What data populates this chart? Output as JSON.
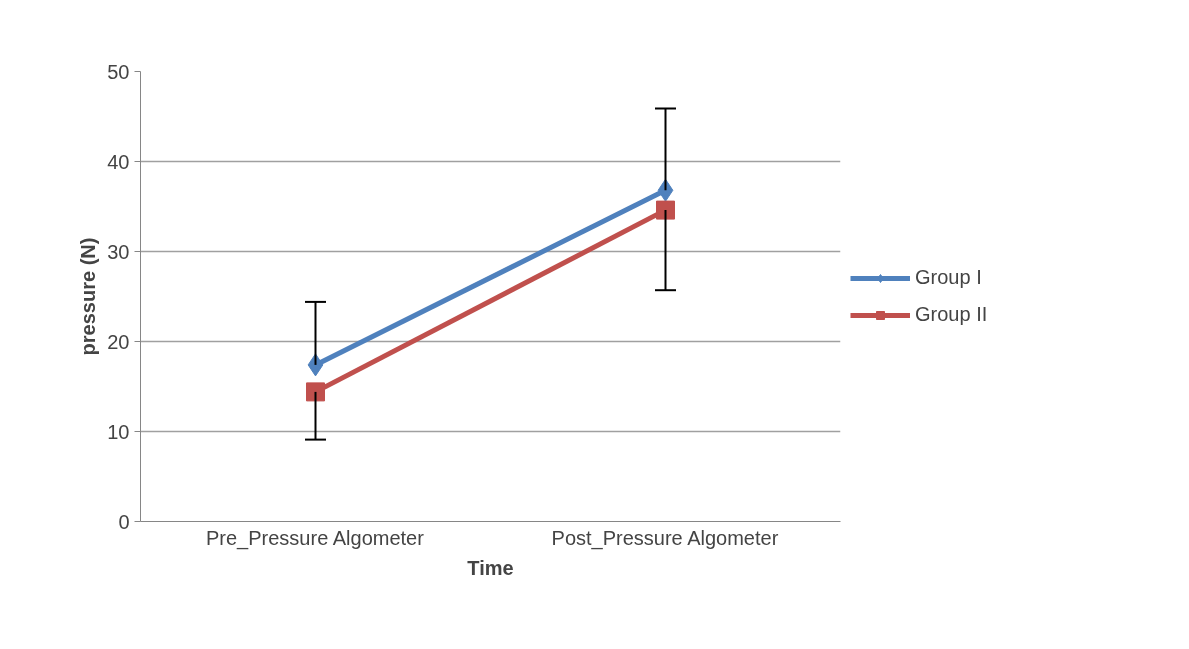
{
  "chart_data": {
    "type": "line",
    "xlabel": "Time",
    "ylabel": "pressure (N)",
    "categories": [
      "Pre_Pressure Algometer",
      "Post_Pressure Algometer"
    ],
    "series": [
      {
        "name": "Group I",
        "color": "#4f81bd",
        "values": [
          17.4,
          36.8
        ],
        "errors": [
          [
            17.4,
            24.4
          ],
          [
            36.8,
            45.9
          ]
        ],
        "marker": "diamond"
      },
      {
        "name": "Group II",
        "color": "#c0504d",
        "values": [
          14.4,
          34.6
        ],
        "errors": [
          [
            9.1,
            14.4
          ],
          [
            25.7,
            34.6
          ]
        ],
        "marker": "square"
      }
    ],
    "ylim": [
      0,
      50
    ],
    "yticks": [
      0,
      10,
      20,
      30,
      40,
      50
    ],
    "grid": "y",
    "legend": "right",
    "line_style": "solid"
  }
}
